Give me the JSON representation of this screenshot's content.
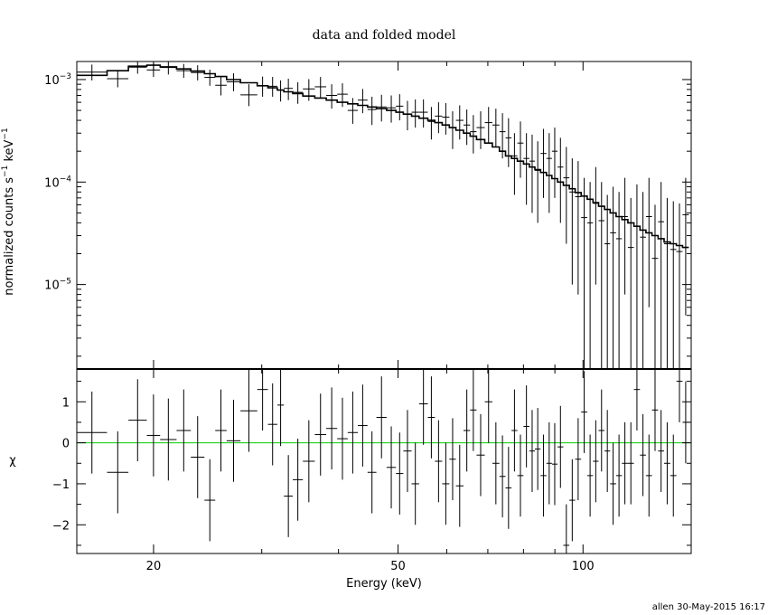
{
  "title": "data and folded model",
  "footer": "allen 30-May-2015 16:17",
  "colors": {
    "data": "#000000",
    "model": "#000000",
    "zero_line": "#00cc00",
    "background": "#ffffff"
  },
  "chart_data": [
    {
      "type": "scatter",
      "panel": "spectrum",
      "title": "data and folded model",
      "ylabel_parts": {
        "prefix": "normalized counts s",
        "sup1": "−1",
        "middle": " keV",
        "sup2": "−1"
      },
      "xscale": "log",
      "yscale": "log",
      "xlim": [
        15,
        150
      ],
      "ylim": [
        1.5e-06,
        0.0015
      ],
      "yticks": [
        {
          "value": 0.001,
          "base": "10",
          "exp": "−3"
        },
        {
          "value": 0.0001,
          "base": "10",
          "exp": "−4"
        },
        {
          "value": 1e-05,
          "base": "10",
          "exp": "−5"
        }
      ],
      "grid": false,
      "series": [
        {
          "role": "data",
          "x_lo": [
            15.0,
            16.8,
            18.2,
            19.5,
            20.5,
            21.8,
            23.0,
            24.2,
            25.2,
            26.3,
            27.7,
            29.5,
            30.7,
            31.8,
            32.6,
            33.7,
            35.0,
            36.6,
            38.2,
            39.8,
            41.4,
            43.0,
            44.6,
            46.1,
            47.9,
            49.6,
            51.0,
            52.6,
            54.1,
            55.9,
            57.4,
            59.0,
            60.6,
            62.1,
            63.9,
            65.5,
            67.1,
            69.2,
            71.2,
            73.1,
            74.8,
            76.5,
            78.2,
            80.0,
            81.8,
            83.5,
            85.3,
            87.2,
            89.0,
            90.9,
            92.9,
            95.0,
            97.1,
            99.3,
            101.6,
            103.8,
            106.0,
            108.4,
            110.7,
            113.2,
            115.7,
            118.3,
            121.0,
            123.8,
            126.6,
            129.5,
            132.5,
            135.5,
            138.7,
            141.9,
            145.2
          ],
          "x_hi": [
            16.8,
            18.2,
            19.5,
            20.5,
            21.8,
            23.0,
            24.2,
            25.2,
            26.3,
            27.7,
            29.5,
            30.7,
            31.8,
            32.6,
            33.7,
            35.0,
            36.6,
            38.2,
            39.8,
            41.4,
            43.0,
            44.6,
            46.1,
            47.9,
            49.6,
            51.0,
            52.6,
            54.1,
            55.9,
            57.4,
            59.0,
            60.6,
            62.1,
            63.9,
            65.5,
            67.1,
            69.2,
            71.2,
            73.1,
            74.8,
            76.5,
            78.2,
            80.0,
            81.8,
            83.5,
            85.3,
            87.2,
            89.0,
            90.9,
            92.9,
            95.0,
            97.1,
            99.3,
            101.6,
            103.8,
            106.0,
            108.4,
            110.7,
            113.2,
            115.7,
            118.3,
            121.0,
            123.8,
            126.6,
            129.5,
            132.5,
            135.5,
            138.7,
            141.9,
            145.2,
            148.7
          ],
          "y": [
            0.00118,
            0.00102,
            0.00132,
            0.00124,
            0.00131,
            0.00122,
            0.00117,
            0.00105,
            0.00088,
            0.00095,
            0.00071,
            0.00087,
            0.00086,
            0.00079,
            0.00082,
            0.00075,
            0.00081,
            0.00085,
            0.0007,
            0.00072,
            0.0005,
            0.00063,
            0.00051,
            0.00054,
            0.00053,
            0.00055,
            0.00046,
            0.00048,
            0.00048,
            0.00039,
            0.00044,
            0.00043,
            0.00034,
            0.0004,
            0.00036,
            0.00031,
            0.00034,
            0.00038,
            0.00036,
            0.00031,
            0.00027,
            0.00018,
            0.00024,
            0.00017,
            0.00016,
            0.00013,
            0.00019,
            0.00017,
            0.0002,
            0.00014,
            0.00011,
            8e-05,
            7.2e-05,
            4.5e-05,
            4e-05,
            6.2e-05,
            4.2e-05,
            2.5e-05,
            3.2e-05,
            2.8e-05,
            4.6e-05,
            2.3e-05,
            3.7e-05,
            2.9e-05,
            4.6e-05,
            1.8e-05,
            4.1e-05,
            2.5e-05,
            2.2e-05,
            2.1e-05,
            4.8e-05
          ],
          "y_lo": [
            0.00098,
            0.00084,
            0.00114,
            0.00106,
            0.00112,
            0.00104,
            0.00098,
            0.00087,
            0.0007,
            0.00077,
            0.00055,
            0.00068,
            0.00068,
            0.00061,
            0.00063,
            0.00058,
            0.00062,
            0.00066,
            0.00052,
            0.00054,
            0.00037,
            0.00047,
            0.00036,
            0.00039,
            0.00038,
            0.0004,
            0.00032,
            0.00034,
            0.00034,
            0.00026,
            0.0003,
            0.00029,
            0.00021,
            0.00026,
            0.00023,
            0.00019,
            0.00021,
            0.00024,
            0.00022,
            0.00017,
            0.00014,
            7.5e-05,
            0.00011,
            6e-05,
            5e-05,
            4e-05,
            7e-05,
            5e-05,
            7e-05,
            4e-05,
            2.5e-05,
            1e-05,
            8e-06,
            1.5e-06,
            1.5e-06,
            1e-05,
            1.5e-06,
            1.5e-06,
            1.5e-06,
            1.5e-06,
            8e-06,
            1.5e-06,
            1.5e-06,
            1.5e-06,
            6e-06,
            1.5e-06,
            1.5e-06,
            1.5e-06,
            1.5e-06,
            1.5e-06,
            5e-06
          ],
          "y_hi": [
            0.0014,
            0.00124,
            0.00152,
            0.00144,
            0.00152,
            0.00142,
            0.00138,
            0.00125,
            0.00108,
            0.00115,
            0.0009,
            0.00107,
            0.00106,
            0.00098,
            0.00102,
            0.00094,
            0.00101,
            0.00106,
            0.0009,
            0.00092,
            0.00066,
            0.00081,
            0.00068,
            0.00071,
            0.0007,
            0.00072,
            0.00062,
            0.00064,
            0.00064,
            0.00054,
            0.0006,
            0.00059,
            0.00049,
            0.00056,
            0.00051,
            0.00045,
            0.00049,
            0.00054,
            0.00052,
            0.00047,
            0.00042,
            0.0003,
            0.00039,
            0.0003,
            0.00029,
            0.00025,
            0.00033,
            0.0003,
            0.00034,
            0.00027,
            0.00022,
            0.00017,
            0.00016,
            0.00011,
            0.0001,
            0.00014,
            0.0001,
            7.5e-05,
            9e-05,
            8e-05,
            0.00011,
            7e-05,
            9.5e-05,
            8e-05,
            0.00011,
            6e-05,
            0.0001,
            7e-05,
            6.5e-05,
            6.2e-05,
            0.00011
          ]
        },
        {
          "role": "model",
          "x_lo": [
            15.0,
            16.8,
            18.2,
            19.5,
            20.5,
            21.8,
            23.0,
            24.2,
            25.2,
            26.3,
            27.7,
            29.5,
            30.7,
            31.8,
            32.6,
            33.7,
            35.0,
            36.6,
            38.2,
            39.8,
            41.4,
            43.0,
            44.6,
            46.1,
            47.9,
            49.6,
            51.0,
            52.6,
            54.1,
            55.9,
            57.4,
            59.0,
            60.6,
            62.1,
            63.9,
            65.5,
            67.1,
            69.2,
            71.2,
            73.1,
            74.8,
            76.5,
            78.2,
            80.0,
            81.8,
            83.5,
            85.3,
            87.2,
            89.0,
            90.9,
            92.9,
            95.0,
            97.1,
            99.3,
            101.6,
            103.8,
            106.0,
            108.4,
            110.7,
            113.2,
            115.7,
            118.3,
            121.0,
            123.8,
            126.6,
            129.5,
            132.5,
            135.5,
            138.7,
            141.9,
            145.2
          ],
          "x_hi": [
            16.8,
            18.2,
            19.5,
            20.5,
            21.8,
            23.0,
            24.2,
            25.2,
            26.3,
            27.7,
            29.5,
            30.7,
            31.8,
            32.6,
            33.7,
            35.0,
            36.6,
            38.2,
            39.8,
            41.4,
            43.0,
            44.6,
            46.1,
            47.9,
            49.6,
            51.0,
            52.6,
            54.1,
            55.9,
            57.4,
            59.0,
            60.6,
            62.1,
            63.9,
            65.5,
            67.1,
            69.2,
            71.2,
            73.1,
            74.8,
            76.5,
            78.2,
            80.0,
            81.8,
            83.5,
            85.3,
            87.2,
            89.0,
            90.9,
            92.9,
            95.0,
            97.1,
            99.3,
            101.6,
            103.8,
            106.0,
            108.4,
            110.7,
            113.2,
            115.7,
            118.3,
            121.0,
            123.8,
            126.6,
            129.5,
            132.5,
            135.5,
            138.7,
            141.9,
            145.2,
            148.7
          ],
          "y": [
            0.0011,
            0.00122,
            0.00135,
            0.00138,
            0.00133,
            0.00127,
            0.00121,
            0.00114,
            0.00107,
            0.001,
            0.00093,
            0.00087,
            0.00083,
            0.00079,
            0.00076,
            0.00073,
            0.00069,
            0.00066,
            0.00063,
            0.0006,
            0.00058,
            0.00056,
            0.00054,
            0.00052,
            0.0005,
            0.00048,
            0.00046,
            0.00044,
            0.00042,
            0.0004,
            0.00038,
            0.00036,
            0.00034,
            0.00032,
            0.0003,
            0.00028,
            0.00026,
            0.00024,
            0.00022,
            0.0002,
            0.00018,
            0.00017,
            0.00016,
            0.00015,
            0.00014,
            0.000132,
            0.000124,
            0.000116,
            0.000108,
            0.0001,
            9.3e-05,
            8.6e-05,
            7.9e-05,
            7.3e-05,
            6.8e-05,
            6.3e-05,
            5.8e-05,
            5.4e-05,
            5e-05,
            4.6e-05,
            4.3e-05,
            4e-05,
            3.7e-05,
            3.4e-05,
            3.2e-05,
            3e-05,
            2.8e-05,
            2.6e-05,
            2.5e-05,
            2.4e-05,
            2.3e-05
          ]
        }
      ]
    },
    {
      "type": "scatter",
      "panel": "residuals",
      "xlabel": "Energy (keV)",
      "ylabel": "χ",
      "xscale": "log",
      "xlim": [
        15,
        150
      ],
      "ylim": [
        -2.7,
        1.8
      ],
      "xticks": [
        {
          "value": 20,
          "label": "20"
        },
        {
          "value": 50,
          "label": "50"
        },
        {
          "value": 100,
          "label": "100"
        }
      ],
      "yticks": [
        {
          "value": 1,
          "label": "1"
        },
        {
          "value": 0,
          "label": "0"
        },
        {
          "value": -1,
          "label": "−1"
        },
        {
          "value": -2,
          "label": "−2"
        }
      ],
      "reference_line": 0,
      "grid": false,
      "series": [
        {
          "role": "residual",
          "x_lo": [
            15.0,
            16.8,
            18.2,
            19.5,
            20.5,
            21.8,
            23.0,
            24.2,
            25.2,
            26.3,
            27.7,
            29.5,
            30.7,
            31.8,
            32.6,
            33.7,
            35.0,
            36.6,
            38.2,
            39.8,
            41.4,
            43.0,
            44.6,
            46.1,
            47.9,
            49.6,
            51.0,
            52.6,
            54.1,
            55.9,
            57.4,
            59.0,
            60.6,
            62.1,
            63.9,
            65.5,
            67.1,
            69.2,
            71.2,
            73.1,
            74.8,
            76.5,
            78.2,
            80.0,
            81.8,
            83.5,
            85.3,
            87.2,
            89.0,
            90.9,
            92.9,
            95.0,
            97.1,
            99.3,
            101.6,
            103.8,
            106.0,
            108.4,
            110.7,
            113.2,
            115.7,
            118.3,
            121.0,
            123.8,
            126.6,
            129.5,
            132.5,
            135.5,
            138.7,
            141.9,
            145.2
          ],
          "x_hi": [
            16.8,
            18.2,
            19.5,
            20.5,
            21.8,
            23.0,
            24.2,
            25.2,
            26.3,
            27.7,
            29.5,
            30.7,
            31.8,
            32.6,
            33.7,
            35.0,
            36.6,
            38.2,
            39.8,
            41.4,
            43.0,
            44.6,
            46.1,
            47.9,
            49.6,
            51.0,
            52.6,
            54.1,
            55.9,
            57.4,
            59.0,
            60.6,
            62.1,
            63.9,
            65.5,
            67.1,
            69.2,
            71.2,
            73.1,
            74.8,
            76.5,
            78.2,
            80.0,
            81.8,
            83.5,
            85.3,
            87.2,
            89.0,
            90.9,
            92.9,
            95.0,
            97.1,
            99.3,
            101.6,
            103.8,
            106.0,
            108.4,
            110.7,
            113.2,
            115.7,
            118.3,
            121.0,
            123.8,
            126.6,
            129.5,
            132.5,
            135.5,
            138.7,
            141.9,
            145.2,
            148.7
          ],
          "y": [
            0.25,
            -0.72,
            0.55,
            0.18,
            0.08,
            0.3,
            -0.35,
            -1.4,
            0.3,
            0.05,
            0.78,
            1.3,
            0.45,
            0.92,
            -1.3,
            -0.9,
            -0.45,
            0.2,
            0.35,
            0.1,
            0.25,
            0.42,
            -0.72,
            0.62,
            -0.6,
            -0.75,
            -0.2,
            -1.0,
            0.95,
            0.62,
            -0.45,
            -1.0,
            -0.4,
            -1.05,
            0.3,
            0.8,
            -0.3,
            1.0,
            -0.5,
            -0.82,
            -1.1,
            0.3,
            -0.8,
            0.4,
            -0.2,
            -0.15,
            -0.8,
            -0.5,
            -0.52,
            -0.1,
            -2.5,
            -1.4,
            -0.4,
            0.75,
            -0.8,
            -0.45,
            0.3,
            -0.2,
            -1.0,
            -0.8,
            -0.5,
            -0.5,
            1.3,
            -0.3,
            -0.8,
            0.8,
            -0.2,
            -0.5,
            -0.8,
            1.5,
            0.5
          ],
          "err": [
            1.0,
            1.0,
            1.0,
            1.0,
            1.0,
            1.0,
            1.0,
            1.0,
            1.0,
            1.0,
            1.0,
            1.0,
            1.0,
            1.0,
            1.0,
            1.0,
            1.0,
            1.0,
            1.0,
            1.0,
            1.0,
            1.0,
            1.0,
            1.0,
            1.0,
            1.0,
            1.0,
            1.0,
            1.0,
            1.0,
            1.0,
            1.0,
            1.0,
            1.0,
            1.0,
            1.0,
            1.0,
            1.0,
            1.0,
            1.0,
            1.0,
            1.0,
            1.0,
            1.0,
            1.0,
            1.0,
            1.0,
            1.0,
            1.0,
            1.0,
            1.0,
            1.0,
            1.0,
            1.0,
            1.0,
            1.0,
            1.0,
            1.0,
            1.0,
            1.0,
            1.0,
            1.0,
            1.0,
            1.0,
            1.0,
            1.0,
            1.0,
            1.0,
            1.0,
            1.0,
            1.0
          ]
        }
      ]
    }
  ]
}
